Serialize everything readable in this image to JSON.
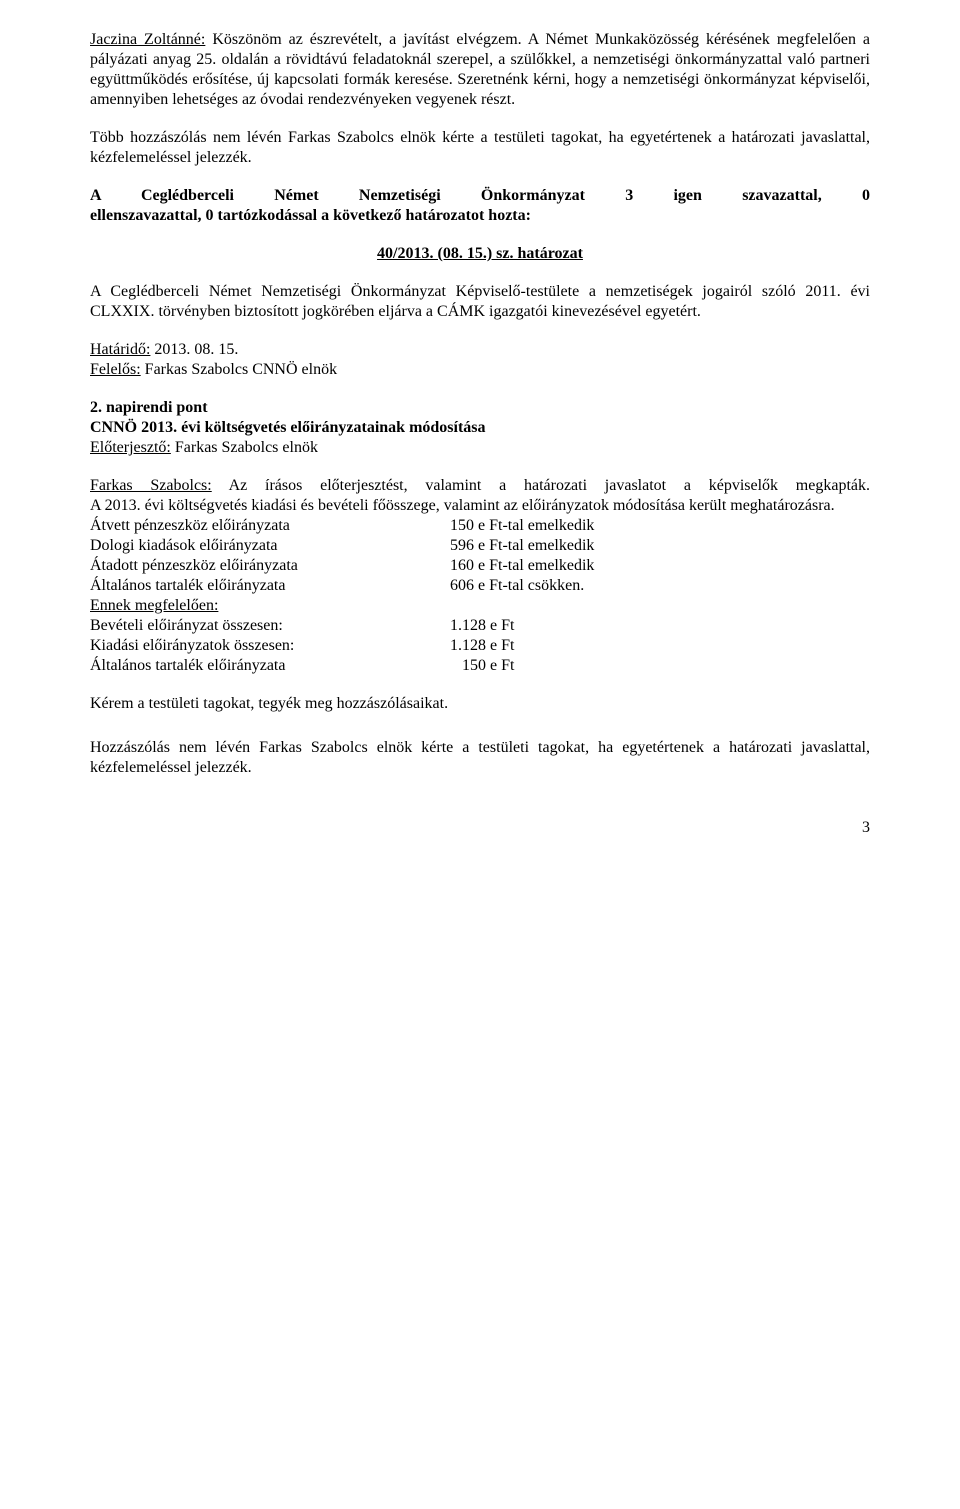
{
  "p1a": "Jaczina Zoltánné:",
  "p1b": " Köszönöm az észrevételt, a javítást elvégzem. A Német Munkaközösség kérésének megfelelően a pályázati anyag 25. oldalán a rövidtávú feladatoknál szerepel, a szülőkkel, a nemzetiségi önkormányzattal való partneri együttműködés erősítése, új kapcsolati formák keresése. Szeretnénk kérni, hogy a nemzetiségi önkormányzat képviselői, amennyiben lehetséges az óvodai rendezvényeken vegyenek részt.",
  "p2": "Több hozzászólás nem lévén Farkas Szabolcs elnök kérte a testületi tagokat, ha egyetértenek a határozati javaslattal, kézfelemeléssel jelezzék.",
  "p3a": "A Ceglédberceli Német Nemzetiségi Önkormányzat 3 igen szavazattal, 0",
  "p3b": "ellenszavazattal, 0 tartózkodással a következő határozatot hozta:",
  "res_num": "40/2013. (08. 15.) sz. határozat",
  "p4": "A Ceglédberceli Német Nemzetiségi Önkormányzat Képviselő-testülete a nemzetiségek jogairól szóló 2011. évi CLXXIX. törvényben biztosított jogkörében eljárva a CÁMK igazgatói kinevezésével egyetért.",
  "deadline_label": "Határidő:",
  "deadline_val": " 2013. 08. 15.",
  "resp_label": "Felelős:",
  "resp_val": " Farkas Szabolcs CNNÖ elnök",
  "agenda_title": "2. napirendi pont",
  "agenda_sub": "CNNÖ 2013. évi költségvetés előirányzatainak módosítása",
  "presenter_label": "Előterjesztő:",
  "presenter_val": " Farkas Szabolcs elnök",
  "fs_label": "Farkas Szabolcs:",
  "fs_text": " Az írásos előterjesztést, valamint a határozati javaslatot a képviselők megkapták.",
  "p5": "A 2013. évi költségvetés kiadási és bevételi főösszege, valamint az előirányzatok módosítása került meghatározásra.",
  "rows": [
    {
      "left": "Átvett pénzeszköz előirányzata",
      "right": "150 e Ft-tal emelkedik"
    },
    {
      "left": "Dologi kiadások előirányzata",
      "right": "596 e Ft-tal emelkedik"
    },
    {
      "left": "Átadott pénzeszköz előirányzata",
      "right": "160 e Ft-tal emelkedik"
    },
    {
      "left": "Általános tartalék előirányzata",
      "right": "606 e Ft-tal csökken."
    }
  ],
  "accord_label": "Ennek megfelelően:",
  "rows2": [
    {
      "left": "Bevételi előirányzat összesen:",
      "right": "1.128 e Ft"
    },
    {
      "left": "Kiadási előirányzatok összesen:",
      "right": "1.128 e Ft"
    },
    {
      "left": "Általános tartalék előirányzata",
      "right": "   150 e Ft"
    }
  ],
  "p6": "Kérem a testületi tagokat, tegyék meg hozzászólásaikat.",
  "p7": "Hozzászólás nem lévén Farkas Szabolcs elnök kérte a testületi tagokat, ha egyetértenek a határozati javaslattal, kézfelemeléssel jelezzék.",
  "page_number": "3",
  "colors": {
    "text": "#000000",
    "background": "#ffffff"
  },
  "typography": {
    "font_family": "Times New Roman",
    "body_fontsize_pt": 12
  }
}
